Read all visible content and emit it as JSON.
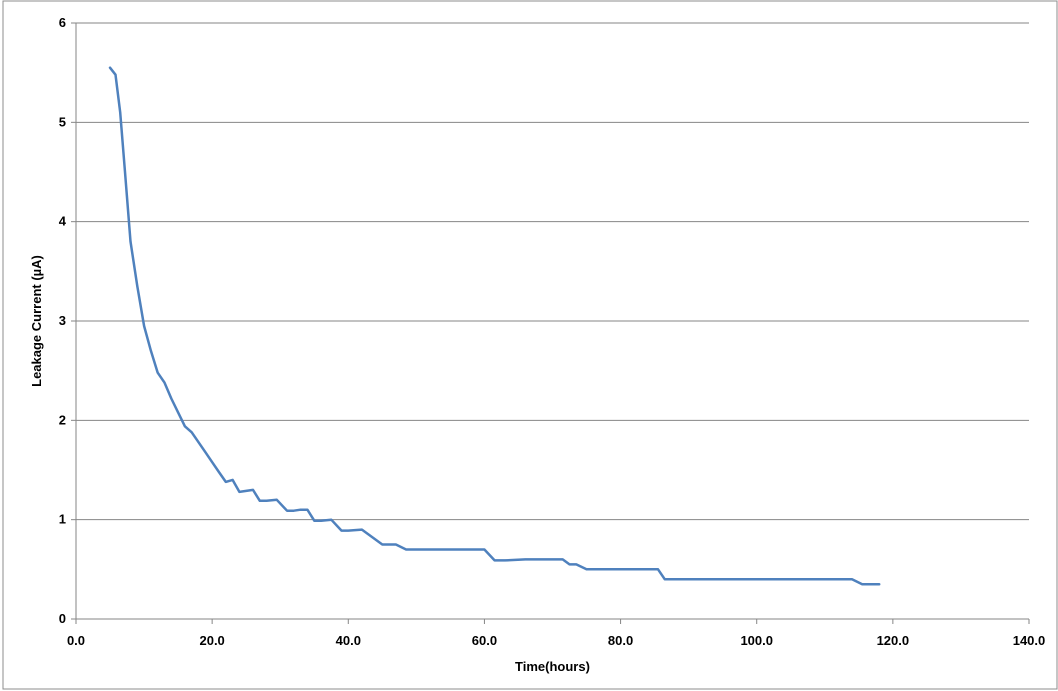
{
  "chart_data": {
    "type": "line",
    "title": "",
    "xlabel": "Time(hours)",
    "ylabel": "Leakage Current (µA)",
    "xlim": [
      0,
      140
    ],
    "ylim": [
      0,
      6
    ],
    "x_ticks": [
      0,
      20,
      40,
      60,
      80,
      100,
      120,
      140
    ],
    "x_tick_labels": [
      "0.0",
      "20.0",
      "40.0",
      "60.0",
      "80.0",
      "100.0",
      "120.0",
      "140.0"
    ],
    "y_ticks": [
      0,
      1,
      2,
      3,
      4,
      5,
      6
    ],
    "y_tick_labels": [
      "0",
      "1",
      "2",
      "3",
      "4",
      "5",
      "6"
    ],
    "grid": "horizontal",
    "legend": "none",
    "line_color": "#4f81bd",
    "series": [
      {
        "x": [
          5.0,
          5.8,
          6.5,
          7.2,
          8.0,
          9.0,
          10.0,
          11.0,
          12.0,
          13.0,
          14.0,
          15.0,
          16.0,
          17.0,
          18.0,
          19.0,
          20.0,
          21.0,
          22.0,
          23.0,
          24.0,
          25.0,
          26.0,
          27.0,
          28.0,
          29.5,
          31.0,
          32.0,
          33.0,
          34.0,
          35.0,
          36.0,
          37.5,
          39.0,
          40.0,
          42.0,
          45.0,
          47.0,
          48.5,
          50.0,
          55.0,
          60.0,
          61.5,
          63.0,
          66.0,
          71.5,
          72.5,
          73.5,
          75.0,
          78.0,
          84.5,
          85.5,
          86.5,
          88.0,
          95.0,
          105.0,
          114.0,
          115.5,
          118.0
        ],
        "y": [
          5.55,
          5.48,
          5.1,
          4.5,
          3.8,
          3.35,
          2.95,
          2.7,
          2.48,
          2.38,
          2.22,
          2.08,
          1.94,
          1.88,
          1.78,
          1.68,
          1.58,
          1.48,
          1.38,
          1.4,
          1.28,
          1.29,
          1.3,
          1.19,
          1.19,
          1.2,
          1.09,
          1.09,
          1.1,
          1.1,
          0.99,
          0.99,
          1.0,
          0.89,
          0.89,
          0.9,
          0.75,
          0.75,
          0.7,
          0.7,
          0.7,
          0.7,
          0.59,
          0.59,
          0.6,
          0.6,
          0.55,
          0.55,
          0.5,
          0.5,
          0.5,
          0.5,
          0.4,
          0.4,
          0.4,
          0.4,
          0.4,
          0.35,
          0.35
        ]
      }
    ]
  }
}
